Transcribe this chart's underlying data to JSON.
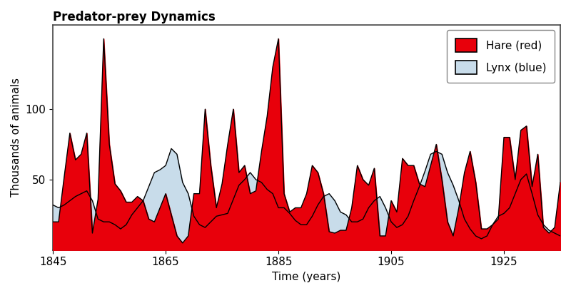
{
  "title": "Predator-prey Dynamics",
  "xlabel": "Time (years)",
  "ylabel": "Thousands of animals",
  "hare_color": "#e8000b",
  "hare_edge_color": "#000000",
  "lynx_color": "#c8dcea",
  "lynx_edge_color": "#000000",
  "background_color": "#ffffff",
  "legend_hare": "Hare (red)",
  "legend_lynx": "Lynx (blue)",
  "years": [
    1845,
    1846,
    1847,
    1848,
    1849,
    1850,
    1851,
    1852,
    1853,
    1854,
    1855,
    1856,
    1857,
    1858,
    1859,
    1860,
    1861,
    1862,
    1863,
    1864,
    1865,
    1866,
    1867,
    1868,
    1869,
    1870,
    1871,
    1872,
    1873,
    1874,
    1875,
    1876,
    1877,
    1878,
    1879,
    1880,
    1881,
    1882,
    1883,
    1884,
    1885,
    1886,
    1887,
    1888,
    1889,
    1890,
    1891,
    1892,
    1893,
    1894,
    1895,
    1896,
    1897,
    1898,
    1899,
    1900,
    1901,
    1902,
    1903,
    1904,
    1905,
    1906,
    1907,
    1908,
    1909,
    1910,
    1911,
    1912,
    1913,
    1914,
    1915,
    1916,
    1917,
    1918,
    1919,
    1920,
    1921,
    1922,
    1923,
    1924,
    1925,
    1926,
    1927,
    1928,
    1929,
    1930,
    1931,
    1932,
    1933,
    1934,
    1935
  ],
  "hares": [
    20,
    20,
    52,
    83,
    64,
    68,
    83,
    12,
    36,
    150,
    75,
    47,
    42,
    34,
    34,
    38,
    35,
    22,
    20,
    30,
    40,
    25,
    10,
    5,
    10,
    40,
    40,
    100,
    60,
    30,
    47,
    75,
    100,
    55,
    60,
    40,
    42,
    70,
    95,
    130,
    150,
    40,
    27,
    30,
    30,
    40,
    60,
    55,
    40,
    13,
    12,
    14,
    14,
    30,
    60,
    50,
    46,
    58,
    10,
    10,
    35,
    27,
    65,
    60,
    60,
    47,
    45,
    60,
    75,
    50,
    20,
    10,
    30,
    55,
    70,
    48,
    15,
    15,
    18,
    22,
    80,
    80,
    50,
    85,
    88,
    45,
    68,
    16,
    12,
    16,
    48
  ],
  "lynx": [
    32,
    30,
    32,
    35,
    38,
    40,
    42,
    35,
    22,
    20,
    20,
    18,
    15,
    18,
    25,
    30,
    35,
    45,
    55,
    57,
    60,
    72,
    68,
    48,
    40,
    24,
    18,
    16,
    20,
    24,
    25,
    26,
    36,
    46,
    50,
    55,
    50,
    48,
    43,
    40,
    30,
    30,
    26,
    21,
    18,
    18,
    24,
    32,
    38,
    40,
    35,
    27,
    25,
    20,
    20,
    22,
    30,
    35,
    38,
    30,
    20,
    16,
    18,
    24,
    35,
    45,
    56,
    68,
    70,
    68,
    55,
    46,
    35,
    22,
    15,
    10,
    8,
    10,
    18,
    24,
    26,
    30,
    40,
    50,
    54,
    40,
    25,
    18,
    14,
    12,
    10
  ],
  "ylim": [
    0,
    160
  ],
  "xlim": [
    1845,
    1935
  ],
  "yticks": [
    50,
    100
  ],
  "xticks": [
    1845,
    1865,
    1885,
    1905,
    1925
  ]
}
